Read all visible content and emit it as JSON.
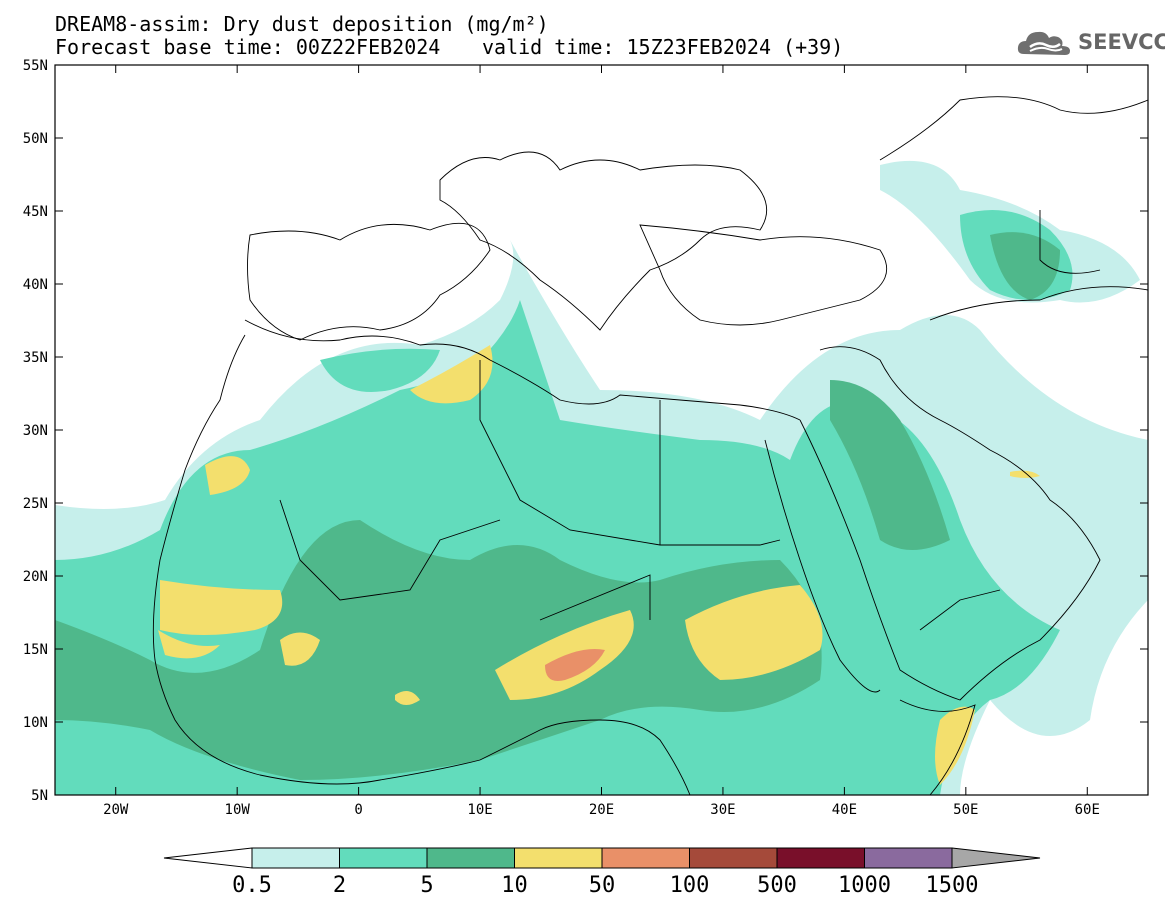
{
  "title": {
    "line1": "DREAM8-assim: Dry dust deposition (mg/m²)",
    "line2": "Forecast base time: 00Z22FEB2024",
    "valid": "valid time: 15Z23FEB2024 (+39)"
  },
  "logo": {
    "text": "SEEVCCC",
    "icon": "cloud-icon",
    "color": "#666666"
  },
  "map": {
    "lon_ticks": [
      "20W",
      "10W",
      "0",
      "10E",
      "20E",
      "30E",
      "40E",
      "50E",
      "60E"
    ],
    "lat_ticks": [
      "55N",
      "50N",
      "45N",
      "40N",
      "35N",
      "30N",
      "25N",
      "20N",
      "15N",
      "10N",
      "5N"
    ],
    "lon_range": [
      -25,
      65
    ],
    "lat_range": [
      5,
      55
    ]
  },
  "colorbar": {
    "labels": [
      "0.5",
      "2",
      "5",
      "10",
      "50",
      "100",
      "500",
      "1000",
      "1500"
    ],
    "colors": [
      "#c6efeb",
      "#62dcbc",
      "#4fb88b",
      "#f3df6d",
      "#e99068",
      "#a54a3a",
      "#790f2a",
      "#8a6a9e",
      "#a7a7a7"
    ]
  }
}
